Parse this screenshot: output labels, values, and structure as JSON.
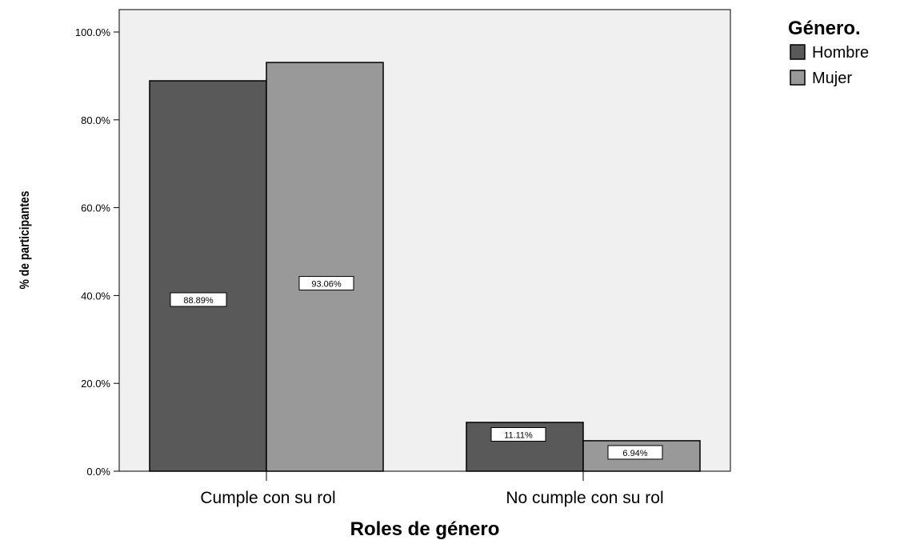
{
  "chart_data": {
    "type": "bar",
    "categories": [
      "Cumple con su rol",
      "No cumple con su rol"
    ],
    "series": [
      {
        "name": "Hombre",
        "values": [
          88.89,
          11.11
        ],
        "labels": [
          "88.89%",
          "11.11%"
        ],
        "color": "#595959"
      },
      {
        "name": "Mujer",
        "values": [
          93.06,
          6.94
        ],
        "labels": [
          "93.06%",
          "6.94%"
        ],
        "color": "#999999"
      }
    ],
    "xlabel": "Roles de género",
    "ylabel": "% de participantes",
    "ylim": [
      0,
      100
    ],
    "yticks": [
      "0.0%",
      "20.0%",
      "40.0%",
      "60.0%",
      "80.0%",
      "100.0%"
    ],
    "legend": {
      "title": "Género.",
      "position": "top-right"
    },
    "background": "#f0f0f0",
    "grid": false
  }
}
